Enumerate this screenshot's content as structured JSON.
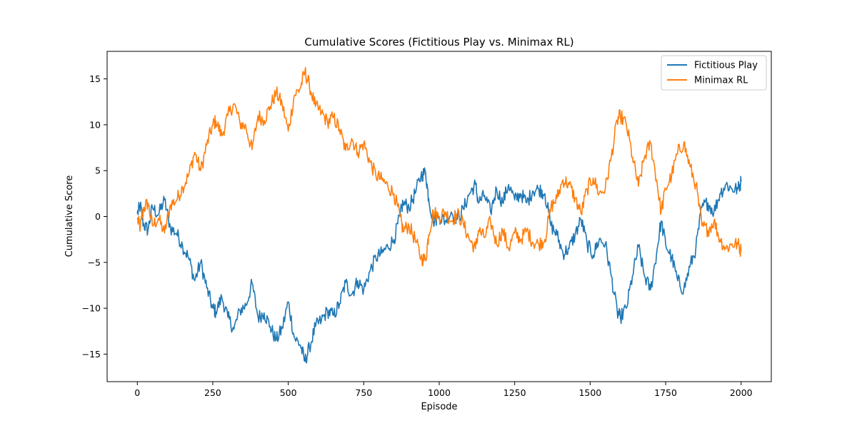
{
  "chart_data": {
    "type": "line",
    "title": "Cumulative Scores (Fictitious Play vs. Minimax RL)",
    "xlabel": "Episode",
    "ylabel": "Cumulative Score",
    "xlim": [
      -100,
      2100
    ],
    "ylim": [
      -18,
      18
    ],
    "xticks": [
      0,
      250,
      500,
      750,
      1000,
      1250,
      1500,
      1750,
      2000
    ],
    "yticks": [
      -15,
      -10,
      -5,
      0,
      5,
      10,
      15
    ],
    "grid": false,
    "legend_position": "top-right",
    "series": [
      {
        "name": "Fictitious Play",
        "color": "#1f77b4",
        "x": [
          0,
          10,
          20,
          35,
          50,
          70,
          90,
          110,
          130,
          150,
          170,
          190,
          210,
          230,
          250,
          260,
          280,
          300,
          320,
          340,
          360,
          380,
          400,
          420,
          440,
          460,
          480,
          500,
          520,
          540,
          555,
          570,
          590,
          610,
          630,
          650,
          670,
          690,
          710,
          730,
          750,
          770,
          790,
          810,
          830,
          850,
          870,
          880,
          900,
          920,
          940,
          955,
          965,
          980,
          1000,
          1020,
          1040,
          1060,
          1080,
          1100,
          1120,
          1130,
          1150,
          1170,
          1190,
          1210,
          1230,
          1250,
          1270,
          1290,
          1310,
          1330,
          1350,
          1370,
          1390,
          1410,
          1430,
          1450,
          1470,
          1490,
          1510,
          1530,
          1550,
          1570,
          1590,
          1600,
          1620,
          1640,
          1660,
          1680,
          1700,
          1720,
          1735,
          1750,
          1770,
          1790,
          1810,
          1830,
          1850,
          1870,
          1890,
          1910,
          1930,
          1950,
          1970,
          1990,
          2000
        ],
        "values": [
          0.3,
          1.2,
          -0.8,
          -1.5,
          1.0,
          0.2,
          1.8,
          -1.3,
          -1.8,
          -3.2,
          -4.5,
          -7.0,
          -5.0,
          -7.8,
          -10.0,
          -10.4,
          -8.8,
          -11.0,
          -12.3,
          -10.2,
          -9.7,
          -7.3,
          -11.0,
          -10.5,
          -12.0,
          -13.5,
          -12.2,
          -9.3,
          -13.2,
          -14.0,
          -15.8,
          -14.3,
          -12.0,
          -11.3,
          -10.3,
          -10.8,
          -9.5,
          -7.2,
          -8.5,
          -7.0,
          -8.0,
          -6.0,
          -4.5,
          -4.0,
          -3.3,
          -2.5,
          0.0,
          1.5,
          1.0,
          2.5,
          4.5,
          4.8,
          2.0,
          -0.5,
          0.0,
          -0.5,
          0.5,
          -0.3,
          0.8,
          2.5,
          3.5,
          1.5,
          2.3,
          0.5,
          3.0,
          1.5,
          3.5,
          1.8,
          2.5,
          1.5,
          2.8,
          3.0,
          2.5,
          -1.0,
          -2.0,
          -4.0,
          -3.5,
          -2.0,
          -0.3,
          -3.0,
          -4.2,
          -2.5,
          -3.0,
          -6.5,
          -10.5,
          -11.0,
          -10.0,
          -6.5,
          -3.3,
          -6.5,
          -8.0,
          -4.0,
          -0.5,
          -3.0,
          -4.5,
          -7.0,
          -8.0,
          -5.5,
          -3.5,
          1.0,
          1.5,
          0.5,
          2.5,
          3.5,
          3.0,
          3.0,
          3.8
        ]
      },
      {
        "name": "Minimax RL",
        "color": "#ff7f0e",
        "x": [
          0,
          10,
          20,
          35,
          50,
          70,
          90,
          110,
          130,
          150,
          170,
          190,
          210,
          230,
          250,
          260,
          280,
          300,
          320,
          340,
          360,
          380,
          400,
          420,
          440,
          460,
          480,
          500,
          520,
          540,
          555,
          570,
          590,
          610,
          630,
          650,
          670,
          690,
          710,
          730,
          750,
          770,
          790,
          810,
          830,
          850,
          870,
          880,
          900,
          920,
          940,
          955,
          965,
          980,
          1000,
          1020,
          1040,
          1060,
          1080,
          1100,
          1120,
          1130,
          1150,
          1170,
          1190,
          1210,
          1230,
          1250,
          1270,
          1290,
          1310,
          1330,
          1350,
          1370,
          1390,
          1410,
          1430,
          1450,
          1470,
          1490,
          1510,
          1530,
          1550,
          1570,
          1590,
          1600,
          1620,
          1640,
          1660,
          1680,
          1700,
          1720,
          1735,
          1750,
          1770,
          1790,
          1810,
          1830,
          1850,
          1870,
          1890,
          1910,
          1930,
          1950,
          1970,
          1990,
          2000
        ],
        "values": [
          -0.3,
          -1.2,
          0.8,
          1.5,
          -1.0,
          -0.2,
          -1.8,
          1.3,
          1.8,
          3.2,
          4.5,
          7.0,
          5.0,
          7.8,
          10.0,
          10.4,
          8.8,
          11.0,
          12.3,
          10.2,
          9.7,
          7.3,
          11.0,
          10.5,
          12.0,
          13.5,
          12.2,
          9.3,
          13.2,
          14.0,
          15.8,
          14.3,
          12.0,
          11.3,
          10.3,
          10.8,
          9.5,
          7.2,
          8.5,
          7.0,
          8.0,
          6.0,
          4.5,
          4.0,
          3.3,
          2.5,
          0.0,
          -1.5,
          -1.0,
          -2.5,
          -4.5,
          -4.8,
          -2.0,
          0.5,
          0.0,
          0.5,
          -0.5,
          0.3,
          -0.8,
          -2.5,
          -3.5,
          -1.5,
          -2.3,
          -0.5,
          -3.0,
          -1.5,
          -3.5,
          -1.8,
          -2.5,
          -1.5,
          -2.8,
          -3.0,
          -2.5,
          1.0,
          2.0,
          4.0,
          3.5,
          2.0,
          0.3,
          3.0,
          4.2,
          2.5,
          3.0,
          6.5,
          10.5,
          11.0,
          10.0,
          6.5,
          3.3,
          6.5,
          8.0,
          4.0,
          0.5,
          3.0,
          4.5,
          7.0,
          8.0,
          5.5,
          3.5,
          -1.0,
          -1.5,
          -0.5,
          -2.5,
          -3.5,
          -3.0,
          -3.0,
          -3.8
        ]
      }
    ]
  }
}
